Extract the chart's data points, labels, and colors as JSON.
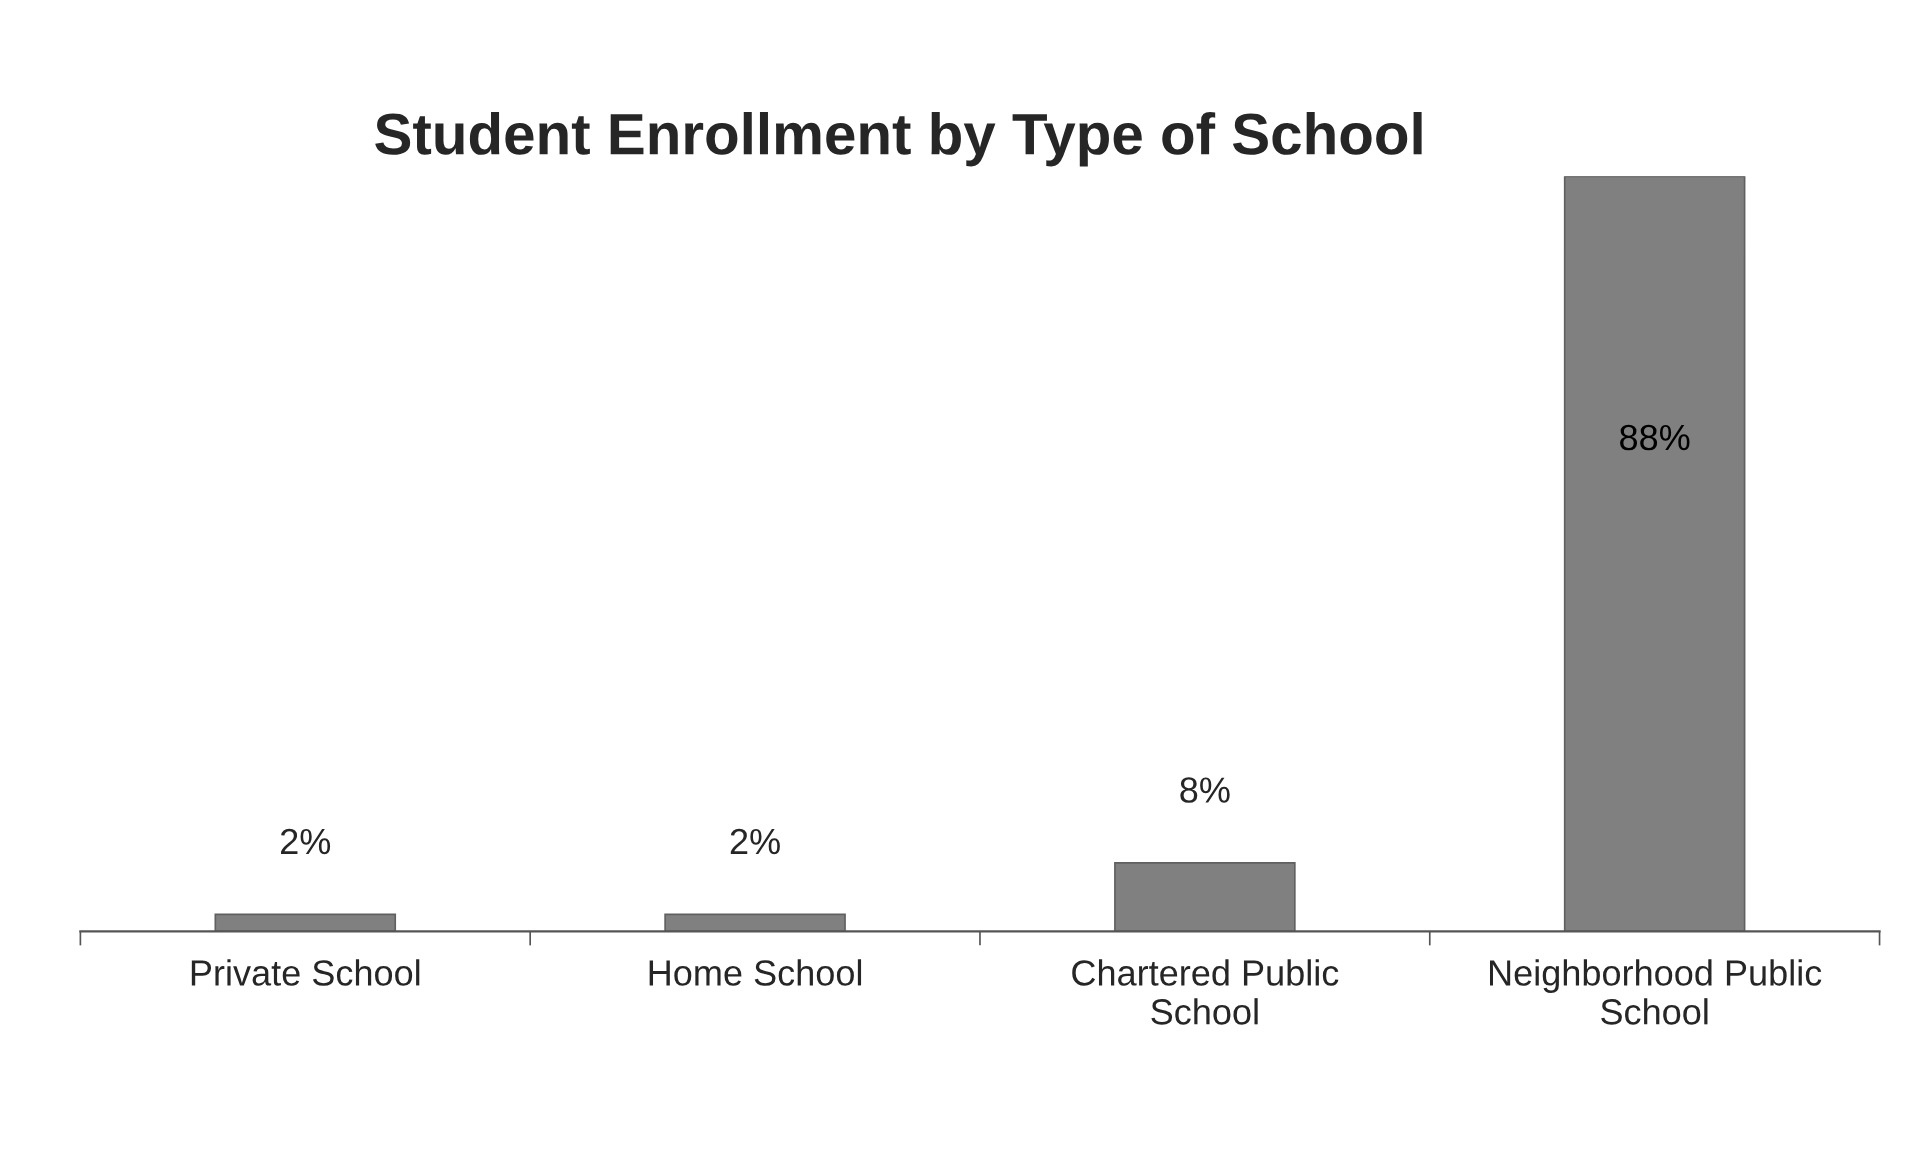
{
  "chart_data": {
    "type": "bar",
    "title": "Student Enrollment by Type of School",
    "categories": [
      "Private School",
      "Home School",
      "Chartered Public School",
      "Neighborhood Public School"
    ],
    "values": [
      2,
      2,
      8,
      88
    ],
    "value_labels": [
      "2%",
      "2%",
      "8%",
      "88%"
    ],
    "color": "#808080",
    "grid": false,
    "legend": false
  }
}
